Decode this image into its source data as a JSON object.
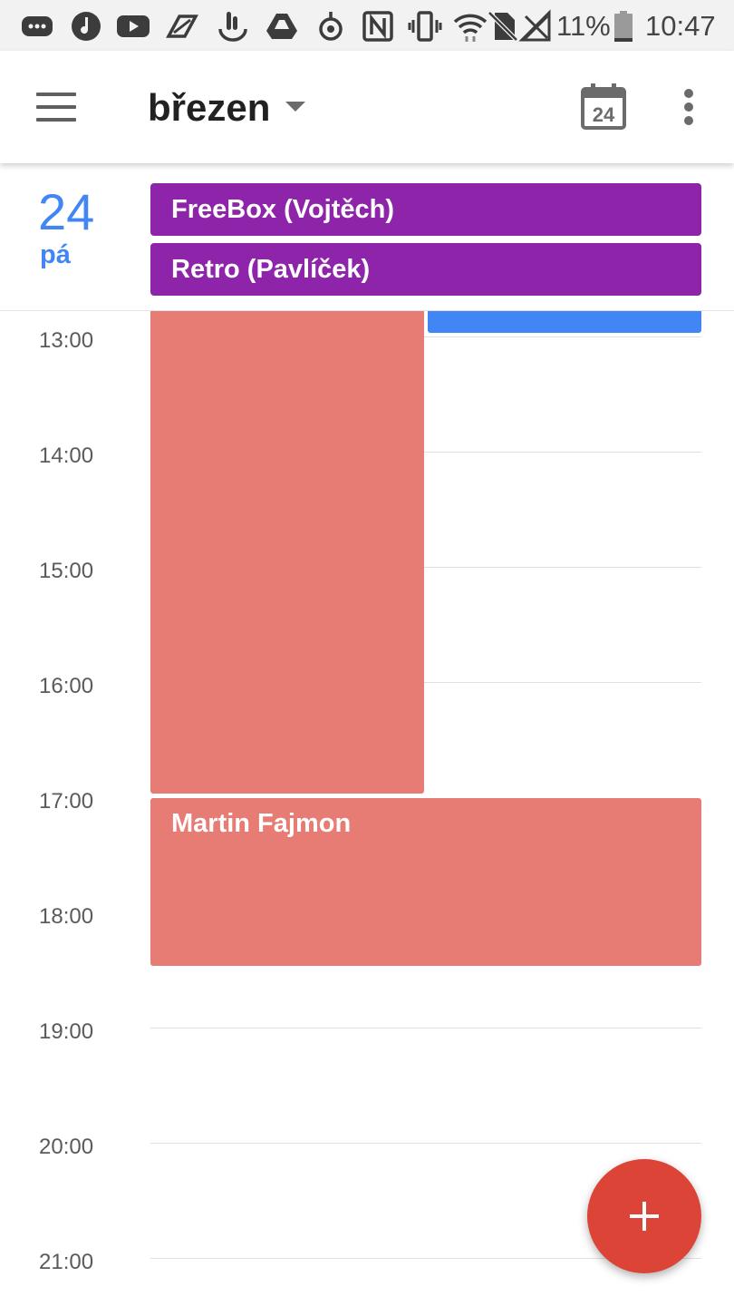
{
  "status_bar": {
    "icons": [
      "messages-icon",
      "music-icon",
      "youtube-icon",
      "app-icon",
      "touch-icon",
      "drive-icon",
      "app-icon-2",
      "nfc-icon",
      "vibrate-icon",
      "wifi-icon",
      "no-sim-icon",
      "no-signal-icon",
      "battery-icon"
    ],
    "battery": "11%",
    "time": "10:47"
  },
  "app_bar": {
    "menu_icon": "hamburger-menu-icon",
    "month": "březen",
    "dropdown_icon": "caret-down-icon",
    "today_date": "24",
    "more_icon": "more-vert-icon"
  },
  "day_header": {
    "day_number": "24",
    "day_name": "pá",
    "all_day_events": [
      {
        "title": "FreeBox (Vojtěch)",
        "color": "#8e24aa"
      },
      {
        "title": "Retro (Pavlíček)",
        "color": "#8e24aa"
      }
    ]
  },
  "timeline": {
    "hours": [
      "13:00",
      "14:00",
      "15:00",
      "16:00",
      "17:00",
      "18:00",
      "19:00",
      "20:00",
      "21:00"
    ],
    "events": [
      {
        "title": "",
        "color": "#e67c73",
        "end": "17:00"
      },
      {
        "title": "",
        "color": "#4285f4",
        "end": "13:00"
      },
      {
        "title": "Martin Fajmon",
        "color": "#e67c73",
        "start": "17:00",
        "end": "18:30"
      }
    ]
  },
  "fab": {
    "icon": "add-icon"
  },
  "colors": {
    "accent": "#4285f4",
    "fab": "#db4437",
    "event_red": "#e67c73",
    "event_purple": "#8e24aa"
  }
}
